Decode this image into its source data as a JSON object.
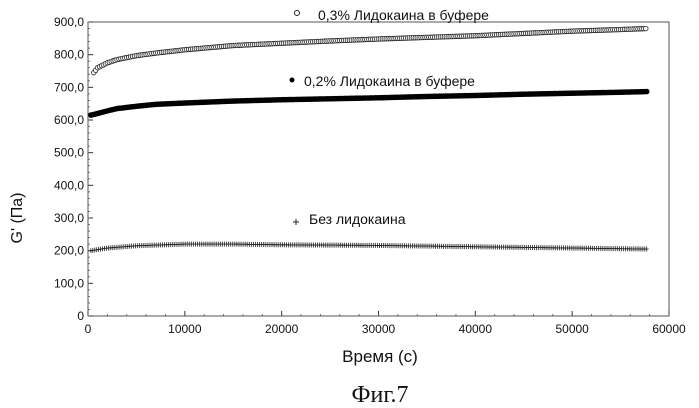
{
  "chart_data": {
    "type": "scatter",
    "title": "",
    "xlabel": "Время (с)",
    "ylabel": "G' (Па)",
    "caption": "Фиг.7",
    "xlim": [
      0,
      60000
    ],
    "ylim": [
      0,
      900
    ],
    "x_ticks": [
      "0",
      "10000",
      "20000",
      "30000",
      "40000",
      "50000",
      "60000"
    ],
    "y_ticks": [
      "0",
      "100,0",
      "200,0",
      "300,0",
      "400,0",
      "500,0",
      "600,0",
      "700,0",
      "800,0",
      "900,0"
    ],
    "grid": false,
    "series": [
      {
        "name": "0,3% Лидокаина в буфере",
        "marker": "open-circle",
        "color": "#222222",
        "x": [
          600,
          1000,
          2000,
          3000,
          5000,
          7000,
          10000,
          15000,
          20000,
          25000,
          30000,
          35000,
          40000,
          45000,
          50000,
          55000,
          57700
        ],
        "y": [
          745,
          760,
          775,
          785,
          797,
          805,
          815,
          828,
          835,
          842,
          848,
          853,
          858,
          865,
          872,
          877,
          880
        ]
      },
      {
        "name": "0,2% Лидокаина в буфере",
        "marker": "filled-circle",
        "color": "#000000",
        "x": [
          300,
          1000,
          2000,
          3000,
          5000,
          7000,
          10000,
          15000,
          20000,
          25000,
          30000,
          35000,
          40000,
          45000,
          50000,
          55000,
          57700
        ],
        "y": [
          615,
          620,
          628,
          635,
          642,
          648,
          652,
          658,
          662,
          665,
          668,
          672,
          675,
          679,
          682,
          685,
          687
        ]
      },
      {
        "name": "Без лидокаина",
        "marker": "plus",
        "color": "#222222",
        "x": [
          300,
          2000,
          5000,
          10000,
          15000,
          20000,
          25000,
          30000,
          35000,
          40000,
          45000,
          50000,
          55000,
          57700
        ],
        "y": [
          200,
          208,
          215,
          220,
          220,
          218,
          217,
          216,
          214,
          212,
          210,
          208,
          206,
          205
        ]
      }
    ]
  }
}
